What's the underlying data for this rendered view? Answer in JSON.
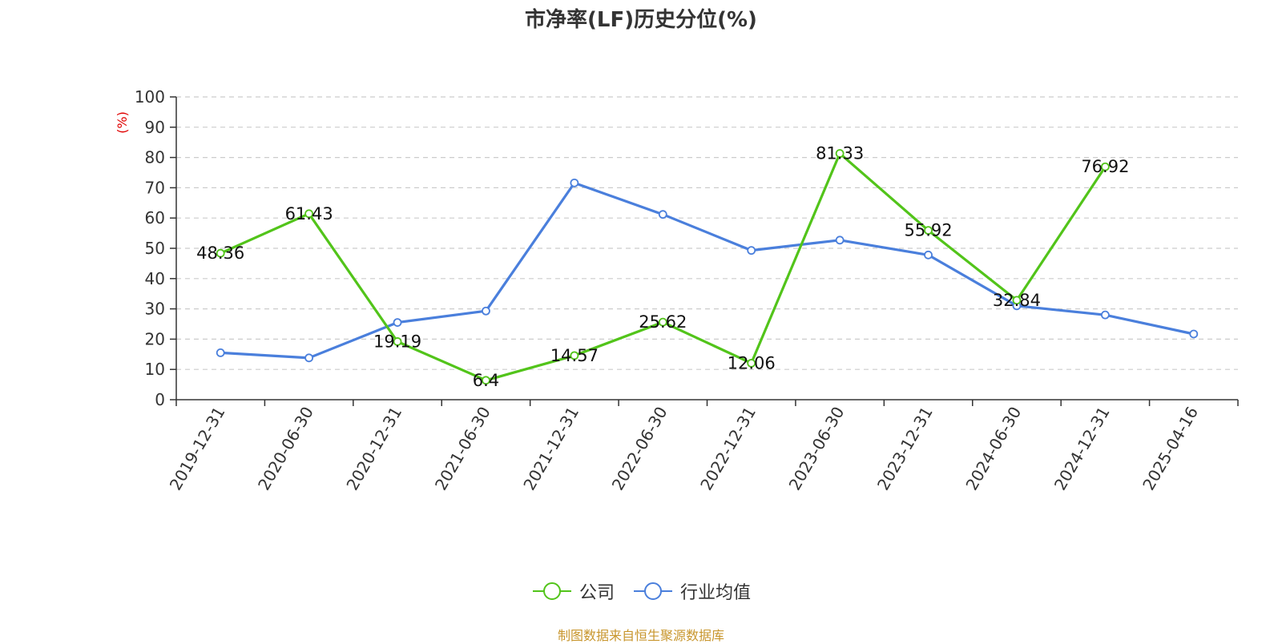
{
  "chart_data": {
    "type": "line",
    "title": "市净率(LF)历史分位(%)",
    "ylabel": "(%)",
    "ylim": [
      0,
      100
    ],
    "yticks": [
      0,
      10,
      20,
      30,
      40,
      50,
      60,
      70,
      80,
      90,
      100
    ],
    "grid": true,
    "legend_position": "bottom",
    "categories": [
      "2019-12-31",
      "2020-06-30",
      "2020-12-31",
      "2021-06-30",
      "2021-12-31",
      "2022-06-30",
      "2022-12-31",
      "2023-06-30",
      "2023-12-31",
      "2024-06-30",
      "2024-12-31",
      "2025-04-16"
    ],
    "series": [
      {
        "name": "公司",
        "color": "#52c41a",
        "values": [
          48.36,
          61.43,
          19.19,
          6.4,
          14.57,
          25.62,
          12.06,
          81.33,
          55.92,
          32.84,
          76.92,
          null
        ],
        "labels": [
          "48.36",
          "61.43",
          "19.19",
          "6.4",
          "14.57",
          "25.62",
          "12.06",
          "81.33",
          "55.92",
          "32.84",
          "76.92",
          null
        ]
      },
      {
        "name": "行业均值",
        "color": "#4a7fdc",
        "values": [
          15.5,
          13.8,
          25.5,
          29.3,
          71.6,
          61.2,
          49.3,
          52.7,
          47.8,
          31.0,
          28.0,
          21.7
        ]
      }
    ]
  },
  "source": "制图数据来自恒生聚源数据库"
}
